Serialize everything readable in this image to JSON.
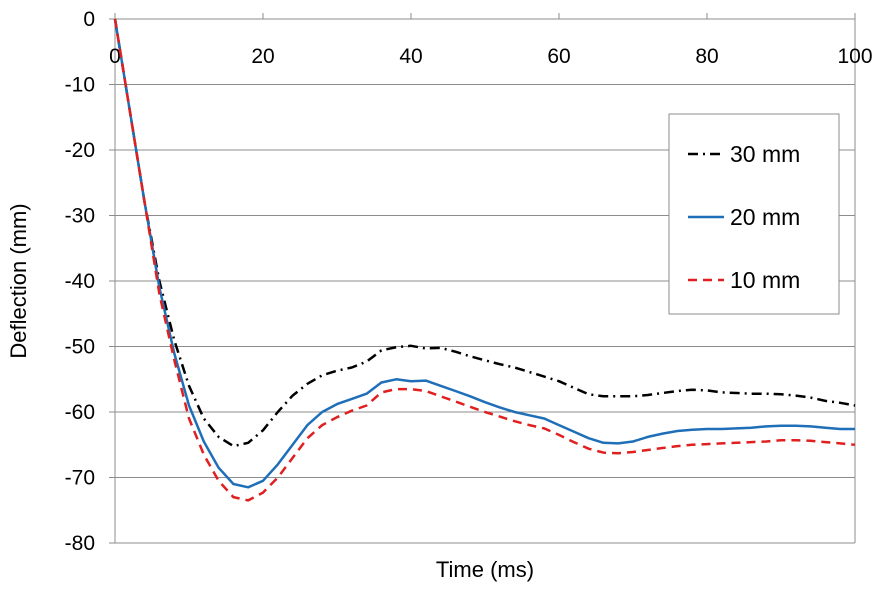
{
  "chart_data": {
    "type": "line",
    "title": "",
    "xlabel": "Time (ms)",
    "ylabel": "Deflection (mm)",
    "xlim": [
      0,
      100
    ],
    "ylim": [
      -80,
      0
    ],
    "x_ticks": [
      "0",
      "20",
      "40",
      "60",
      "80",
      "100"
    ],
    "y_ticks": [
      "0",
      "-10",
      "-20",
      "-30",
      "-40",
      "-50",
      "-60",
      "-70",
      "-80"
    ],
    "grid": "horizontal",
    "legend_position": "right",
    "series": [
      {
        "name": "30 mm",
        "color": "#000000",
        "style": "dash-dot",
        "x": [
          0,
          2,
          4,
          6,
          8,
          10,
          12,
          14,
          16,
          18,
          20,
          22,
          24,
          26,
          28,
          30,
          32,
          34,
          36,
          38,
          40,
          42,
          44,
          46,
          48,
          50,
          52,
          54,
          56,
          58,
          60,
          62,
          64,
          66,
          68,
          70,
          72,
          74,
          76,
          78,
          80,
          82,
          84,
          86,
          88,
          90,
          92,
          94,
          96,
          98,
          100
        ],
        "y": [
          0,
          -14,
          -28,
          -40,
          -49,
          -56,
          -61,
          -63.8,
          -65.2,
          -64.7,
          -62.8,
          -60,
          -57.5,
          -55.7,
          -54.4,
          -53.7,
          -53.2,
          -52.3,
          -50.6,
          -50.1,
          -49.9,
          -50.3,
          -50.2,
          -50.8,
          -51.5,
          -52.1,
          -52.7,
          -53.2,
          -53.9,
          -54.6,
          -55.3,
          -56.3,
          -57.3,
          -57.6,
          -57.6,
          -57.6,
          -57.4,
          -57.1,
          -56.8,
          -56.6,
          -56.7,
          -57,
          -57.1,
          -57.2,
          -57.2,
          -57.3,
          -57.5,
          -57.8,
          -58.3,
          -58.6,
          -59
        ]
      },
      {
        "name": "20 mm",
        "color": "#1f6fb8",
        "style": "solid",
        "x": [
          0,
          2,
          4,
          6,
          8,
          10,
          12,
          14,
          16,
          18,
          20,
          22,
          24,
          26,
          28,
          30,
          32,
          34,
          36,
          38,
          40,
          42,
          44,
          46,
          48,
          50,
          52,
          54,
          56,
          58,
          60,
          62,
          64,
          66,
          68,
          70,
          72,
          74,
          76,
          78,
          80,
          82,
          84,
          86,
          88,
          90,
          92,
          94,
          96,
          98,
          100
        ],
        "y": [
          0,
          -14,
          -28,
          -41,
          -51,
          -59,
          -64.5,
          -68.5,
          -71,
          -71.5,
          -70.5,
          -68,
          -65,
          -62,
          -60,
          -58.8,
          -58,
          -57.2,
          -55.5,
          -55,
          -55.3,
          -55.2,
          -56,
          -56.8,
          -57.6,
          -58.5,
          -59.3,
          -60,
          -60.5,
          -61,
          -62,
          -63,
          -64,
          -64.7,
          -64.8,
          -64.5,
          -63.8,
          -63.3,
          -62.9,
          -62.7,
          -62.6,
          -62.6,
          -62.5,
          -62.4,
          -62.2,
          -62.1,
          -62.1,
          -62.2,
          -62.4,
          -62.6,
          -62.6
        ]
      },
      {
        "name": "10 mm",
        "color": "#e02020",
        "style": "dashed",
        "x": [
          0,
          2,
          4,
          6,
          8,
          10,
          12,
          14,
          16,
          18,
          20,
          22,
          24,
          26,
          28,
          30,
          32,
          34,
          36,
          38,
          40,
          42,
          44,
          46,
          48,
          50,
          52,
          54,
          56,
          58,
          60,
          62,
          64,
          66,
          68,
          70,
          72,
          74,
          76,
          78,
          80,
          82,
          84,
          86,
          88,
          90,
          92,
          94,
          96,
          98,
          100
        ],
        "y": [
          0,
          -14,
          -28,
          -42,
          -52,
          -61,
          -66.5,
          -70.5,
          -73,
          -73.5,
          -72.3,
          -70,
          -67,
          -64,
          -62,
          -60.8,
          -59.8,
          -59,
          -57,
          -56.5,
          -56.5,
          -56.8,
          -57.6,
          -58.4,
          -59.2,
          -60,
          -60.7,
          -61.4,
          -62,
          -62.5,
          -63.5,
          -64.6,
          -65.6,
          -66.2,
          -66.3,
          -66.1,
          -65.8,
          -65.5,
          -65.2,
          -65,
          -64.9,
          -64.8,
          -64.7,
          -64.6,
          -64.5,
          -64.3,
          -64.3,
          -64.4,
          -64.6,
          -64.8,
          -65
        ]
      }
    ]
  }
}
